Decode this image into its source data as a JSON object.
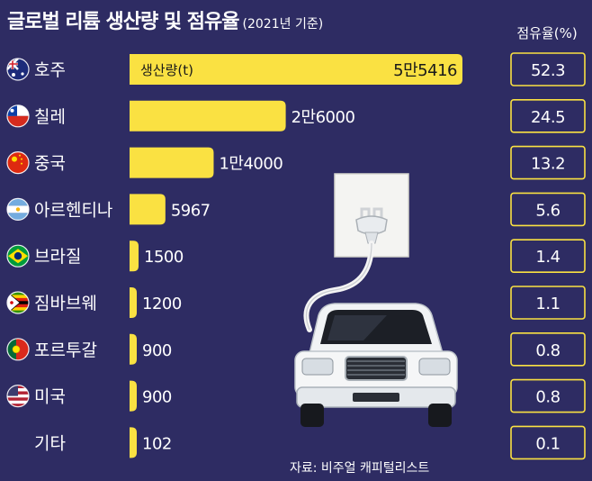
{
  "title": "글로벌 리튬 생산량 및 점유율",
  "subtitle": "(2021년 기준)",
  "share_header": "점유율(%)",
  "source": "자료: 비주얼 캐피털리스트",
  "colors": {
    "background": "#2e2c63",
    "bar": "#fae142",
    "text": "#ffffff",
    "box_border": "#fae142"
  },
  "chart_data": {
    "type": "bar",
    "orientation": "horizontal",
    "title": "글로벌 리튬 생산량 및 점유율",
    "subtitle": "(2021년 기준)",
    "series": [
      {
        "name": "생산량(t)",
        "values": [
          55416,
          26000,
          14000,
          5967,
          1500,
          1200,
          900,
          900,
          102
        ]
      },
      {
        "name": "점유율(%)",
        "values": [
          52.3,
          24.5,
          13.2,
          5.6,
          1.4,
          1.1,
          0.8,
          0.8,
          0.1
        ]
      }
    ],
    "categories": [
      "호주",
      "칠레",
      "중국",
      "아르헨티나",
      "브라질",
      "짐바브웨",
      "포르투갈",
      "미국",
      "기타"
    ],
    "rows": [
      {
        "country": "호주",
        "flag": "australia-flag-icon",
        "value": 55416,
        "label": "5만5416",
        "share": "52.3"
      },
      {
        "country": "칠레",
        "flag": "chile-flag-icon",
        "value": 26000,
        "label": "2만6000",
        "share": "24.5"
      },
      {
        "country": "중국",
        "flag": "china-flag-icon",
        "value": 14000,
        "label": "1만4000",
        "share": "13.2"
      },
      {
        "country": "아르헨티나",
        "flag": "argentina-flag-icon",
        "value": 5967,
        "label": "5967",
        "share": "5.6"
      },
      {
        "country": "브라질",
        "flag": "brazil-flag-icon",
        "value": 1500,
        "label": "1500",
        "share": "1.4"
      },
      {
        "country": "짐바브웨",
        "flag": "zimbabwe-flag-icon",
        "value": 1200,
        "label": "1200",
        "share": "1.1"
      },
      {
        "country": "포르투갈",
        "flag": "portugal-flag-icon",
        "value": 900,
        "label": "900",
        "share": "0.8"
      },
      {
        "country": "미국",
        "flag": "usa-flag-icon",
        "value": 900,
        "label": "900",
        "share": "0.8"
      },
      {
        "country": "기타",
        "flag": "",
        "value": 102,
        "label": "102",
        "share": "0.1"
      }
    ],
    "inline_unit_label": "생산량(t)",
    "illustration": "electric-car-plugged-in",
    "legend": "none",
    "grid": false
  }
}
